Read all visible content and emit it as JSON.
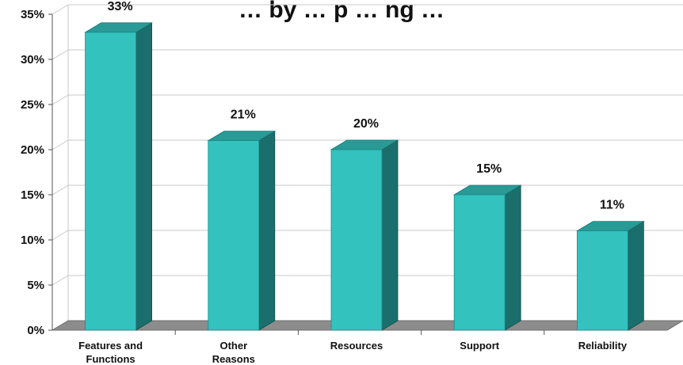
{
  "chart_data": {
    "type": "bar",
    "title": "… by … p … ng …",
    "categories": [
      [
        "Features and",
        "Functions"
      ],
      [
        "Other",
        "Reasons"
      ],
      [
        "Resources"
      ],
      [
        "Support"
      ],
      [
        "Reliability"
      ]
    ],
    "values": [
      33,
      21,
      20,
      15,
      11
    ],
    "data_labels": [
      "33%",
      "21%",
      "20%",
      "15%",
      "11%"
    ],
    "yticks": [
      {
        "value": 0,
        "label": "0%"
      },
      {
        "value": 5,
        "label": "5%"
      },
      {
        "value": 10,
        "label": "10%"
      },
      {
        "value": 15,
        "label": "15%"
      },
      {
        "value": 20,
        "label": "20%"
      },
      {
        "value": 25,
        "label": "25%"
      },
      {
        "value": 30,
        "label": "30%"
      },
      {
        "value": 35,
        "label": "35%"
      }
    ],
    "ylim": [
      0,
      35
    ],
    "xlabel": "",
    "ylabel": "",
    "grid": true,
    "three_d": true,
    "colors": {
      "bar_front": "#33c2be",
      "bar_side": "#1a6f6c",
      "bar_top": "#2a9a97",
      "floor": "#8c8c8c",
      "grid": "#c8c8c8",
      "axis": "#555555"
    }
  }
}
